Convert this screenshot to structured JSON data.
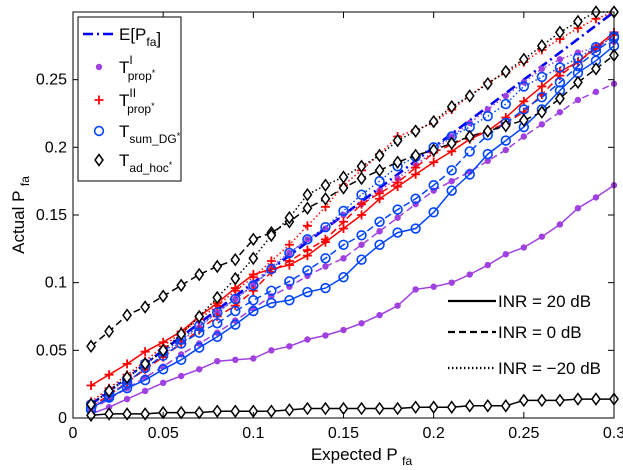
{
  "chart_data": {
    "type": "line",
    "title": "",
    "xlabel": "Expected P",
    "xlabel_sub": "fa",
    "ylabel": "Actual P",
    "ylabel_sub": "fa",
    "xlim": [
      0,
      0.3
    ],
    "ylim": [
      0,
      0.3
    ],
    "xticks": [
      0,
      0.05,
      0.1,
      0.15,
      0.2,
      0.25,
      0.3
    ],
    "xtick_labels": [
      "0",
      "0.05",
      "0.1",
      "0.15",
      "0.2",
      "0.25",
      "0.3"
    ],
    "yticks": [
      0,
      0.05,
      0.1,
      0.15,
      0.2,
      0.25
    ],
    "ytick_labels": [
      "0",
      "0.05",
      "0.1",
      "0.15",
      "0.2",
      "0.25"
    ],
    "grid": false,
    "legend_position": "top-left",
    "legend": [
      {
        "key": "efa",
        "base": "E[P",
        "sub": "fa",
        "sup": "",
        "tail": "]",
        "color": "#0000ff",
        "marker": "none",
        "dash": "dashdot"
      },
      {
        "key": "prop1",
        "base": "T",
        "sub": "prop",
        "sup": "I",
        "star": "*",
        "tail": "",
        "color": "#a040e0",
        "marker": "dot",
        "dash": "none"
      },
      {
        "key": "prop2",
        "base": "T",
        "sub": "prop",
        "sup": "II",
        "star": "*",
        "tail": "",
        "color": "#ff0000",
        "marker": "plus",
        "dash": "none"
      },
      {
        "key": "sumdg",
        "base": "T",
        "sub": "sum_DG",
        "sup": "",
        "star": "*",
        "tail": "",
        "color": "#0044ff",
        "marker": "circle",
        "dash": "none"
      },
      {
        "key": "adhoc",
        "base": "T",
        "sub": "ad_hoc",
        "sup": "",
        "star": "*",
        "tail": "",
        "color": "#000000",
        "marker": "diamond",
        "dash": "none"
      }
    ],
    "inr_legend": [
      {
        "label": "INR = 20 dB",
        "dash": "solid"
      },
      {
        "label": "INR = 0 dB",
        "dash": "dashed"
      },
      {
        "label": "INR = −20 dB",
        "dash": "dotted"
      }
    ],
    "x": [
      0.01,
      0.02,
      0.03,
      0.04,
      0.05,
      0.06,
      0.07,
      0.08,
      0.09,
      0.1,
      0.11,
      0.12,
      0.13,
      0.14,
      0.15,
      0.16,
      0.17,
      0.18,
      0.19,
      0.2,
      0.21,
      0.22,
      0.23,
      0.24,
      0.25,
      0.26,
      0.27,
      0.28,
      0.29,
      0.3
    ],
    "series": [
      {
        "name": "E[Pfa]",
        "color": "#0000ff",
        "dash": "dashdot",
        "marker": "none",
        "width": 2.6,
        "values": [
          0.01,
          0.02,
          0.03,
          0.04,
          0.05,
          0.06,
          0.07,
          0.08,
          0.09,
          0.1,
          0.11,
          0.12,
          0.13,
          0.14,
          0.15,
          0.16,
          0.17,
          0.18,
          0.19,
          0.2,
          0.21,
          0.22,
          0.23,
          0.24,
          0.25,
          0.26,
          0.27,
          0.28,
          0.29,
          0.3
        ]
      },
      {
        "name": "T_prop^I INR=20dB",
        "color": "#a040e0",
        "dash": "solid",
        "marker": "dot",
        "values": [
          0.003,
          0.008,
          0.014,
          0.02,
          0.026,
          0.031,
          0.036,
          0.042,
          0.043,
          0.044,
          0.05,
          0.053,
          0.058,
          0.061,
          0.065,
          0.07,
          0.076,
          0.083,
          0.095,
          0.097,
          0.1,
          0.106,
          0.113,
          0.121,
          0.126,
          0.134,
          0.143,
          0.155,
          0.163,
          0.172
        ]
      },
      {
        "name": "T_prop^I INR=0dB",
        "color": "#a040e0",
        "dash": "dashed",
        "marker": "dot",
        "values": [
          0.006,
          0.014,
          0.022,
          0.03,
          0.038,
          0.047,
          0.055,
          0.063,
          0.072,
          0.081,
          0.09,
          0.097,
          0.105,
          0.112,
          0.118,
          0.128,
          0.138,
          0.148,
          0.158,
          0.168,
          0.175,
          0.182,
          0.19,
          0.198,
          0.208,
          0.217,
          0.226,
          0.235,
          0.241,
          0.247
        ]
      },
      {
        "name": "T_prop^I INR=-20dB",
        "color": "#a040e0",
        "dash": "dotted",
        "marker": "dot",
        "values": [
          0.008,
          0.017,
          0.027,
          0.036,
          0.047,
          0.057,
          0.067,
          0.078,
          0.088,
          0.098,
          0.112,
          0.122,
          0.132,
          0.14,
          0.15,
          0.158,
          0.168,
          0.177,
          0.187,
          0.197,
          0.208,
          0.218,
          0.228,
          0.238,
          0.248,
          0.258,
          0.265,
          0.27,
          0.274,
          0.278
        ]
      },
      {
        "name": "T_prop^II INR=20dB",
        "color": "#ff0000",
        "dash": "solid",
        "marker": "plus",
        "values": [
          0.024,
          0.032,
          0.04,
          0.049,
          0.056,
          0.064,
          0.075,
          0.085,
          0.096,
          0.106,
          0.11,
          0.113,
          0.12,
          0.13,
          0.14,
          0.15,
          0.162,
          0.171,
          0.18,
          0.189,
          0.197,
          0.206,
          0.212,
          0.222,
          0.234,
          0.245,
          0.256,
          0.263,
          0.274,
          0.285
        ]
      },
      {
        "name": "T_prop^II INR=0dB",
        "color": "#ff0000",
        "dash": "dashed",
        "marker": "plus",
        "values": [
          0.008,
          0.017,
          0.026,
          0.036,
          0.045,
          0.055,
          0.065,
          0.075,
          0.083,
          0.094,
          0.108,
          0.116,
          0.124,
          0.132,
          0.145,
          0.158,
          0.166,
          0.174,
          0.185,
          0.196,
          0.202,
          0.208,
          0.212,
          0.218,
          0.226,
          0.239,
          0.253,
          0.263,
          0.273,
          0.283
        ]
      },
      {
        "name": "T_prop^II INR=-20dB",
        "color": "#ff0000",
        "dash": "dotted",
        "marker": "plus",
        "values": [
          0.012,
          0.022,
          0.032,
          0.042,
          0.053,
          0.063,
          0.073,
          0.083,
          0.094,
          0.104,
          0.116,
          0.128,
          0.142,
          0.156,
          0.172,
          0.183,
          0.195,
          0.208,
          0.213,
          0.218,
          0.228,
          0.238,
          0.248,
          0.255,
          0.263,
          0.272,
          0.28,
          0.288,
          0.295,
          0.3
        ]
      },
      {
        "name": "T_sum_DG INR=20dB",
        "color": "#0044ff",
        "dash": "solid",
        "marker": "circle",
        "values": [
          0.007,
          0.015,
          0.022,
          0.028,
          0.036,
          0.043,
          0.052,
          0.06,
          0.069,
          0.079,
          0.085,
          0.087,
          0.093,
          0.096,
          0.104,
          0.117,
          0.128,
          0.137,
          0.14,
          0.152,
          0.168,
          0.18,
          0.195,
          0.205,
          0.215,
          0.228,
          0.242,
          0.255,
          0.264,
          0.275
        ]
      },
      {
        "name": "T_sum_DG INR=0dB",
        "color": "#0044ff",
        "dash": "dashed",
        "marker": "circle",
        "values": [
          0.006,
          0.016,
          0.026,
          0.037,
          0.046,
          0.055,
          0.063,
          0.07,
          0.079,
          0.087,
          0.094,
          0.101,
          0.109,
          0.118,
          0.128,
          0.135,
          0.145,
          0.154,
          0.162,
          0.172,
          0.183,
          0.197,
          0.209,
          0.218,
          0.228,
          0.237,
          0.248,
          0.26,
          0.271,
          0.281
        ]
      },
      {
        "name": "T_sum_DG INR=-20dB",
        "color": "#0044ff",
        "dash": "dotted",
        "marker": "circle",
        "values": [
          0.01,
          0.019,
          0.029,
          0.04,
          0.049,
          0.058,
          0.068,
          0.078,
          0.088,
          0.098,
          0.11,
          0.122,
          0.132,
          0.141,
          0.153,
          0.165,
          0.175,
          0.186,
          0.193,
          0.2,
          0.208,
          0.215,
          0.223,
          0.232,
          0.245,
          0.252,
          0.259,
          0.266,
          0.274,
          0.282
        ]
      },
      {
        "name": "T_ad_hoc INR=20dB",
        "color": "#000000",
        "dash": "solid",
        "marker": "diamond",
        "values": [
          0.002,
          0.003,
          0.003,
          0.003,
          0.004,
          0.004,
          0.004,
          0.005,
          0.005,
          0.005,
          0.005,
          0.006,
          0.007,
          0.007,
          0.007,
          0.007,
          0.007,
          0.007,
          0.008,
          0.008,
          0.008,
          0.009,
          0.009,
          0.009,
          0.013,
          0.013,
          0.013,
          0.014,
          0.014,
          0.014
        ]
      },
      {
        "name": "T_ad_hoc INR=0dB",
        "color": "#000000",
        "dash": "dashed",
        "marker": "diamond",
        "values": [
          0.053,
          0.064,
          0.076,
          0.082,
          0.09,
          0.098,
          0.106,
          0.112,
          0.117,
          0.132,
          0.137,
          0.145,
          0.155,
          0.162,
          0.17,
          0.177,
          0.183,
          0.189,
          0.194,
          0.198,
          0.203,
          0.208,
          0.212,
          0.216,
          0.22,
          0.226,
          0.236,
          0.248,
          0.258,
          0.268
        ]
      },
      {
        "name": "T_ad_hoc INR=-20dB",
        "color": "#000000",
        "dash": "dotted",
        "marker": "diamond",
        "values": [
          0.01,
          0.02,
          0.03,
          0.04,
          0.05,
          0.062,
          0.075,
          0.089,
          0.103,
          0.118,
          0.135,
          0.148,
          0.165,
          0.172,
          0.178,
          0.186,
          0.194,
          0.205,
          0.212,
          0.219,
          0.23,
          0.238,
          0.247,
          0.256,
          0.265,
          0.275,
          0.285,
          0.293,
          0.3,
          0.3
        ]
      }
    ]
  }
}
